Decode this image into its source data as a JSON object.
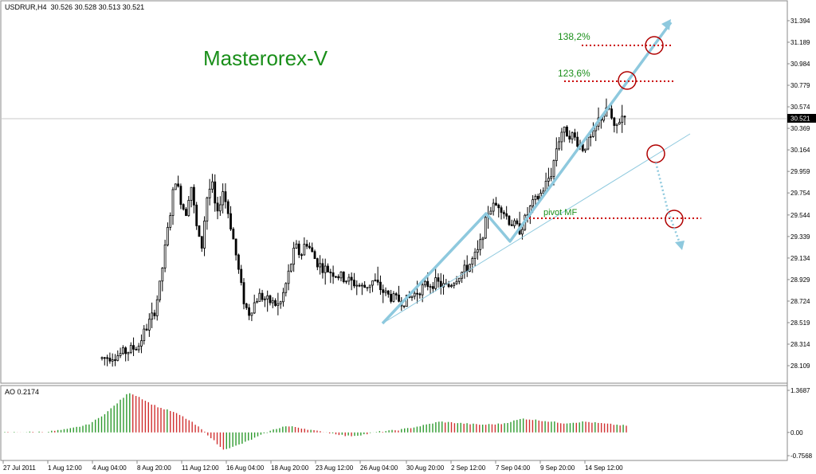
{
  "header": {
    "symbol": "USDRUR,H4",
    "ohlc": "30.526 30.528 30.513 30.521"
  },
  "brand": "Masterorex-V",
  "annotations": {
    "fib_138": "138,2%",
    "fib_123": "123,6%",
    "pivot": "pivot MF"
  },
  "colors": {
    "candle": "#000000",
    "arrow": "#8ec9de",
    "fibline": "#cc0000",
    "circle": "#b00000",
    "annotation": "#1a8f1a",
    "ao_up": "#2e9a2e",
    "ao_down": "#d03030",
    "grid": "#c8c8c8"
  },
  "chart_data": [
    {
      "type": "candlestick",
      "title": "USDRUR,H4",
      "current_price": 30.521,
      "ylim": [
        27.95,
        31.5
      ],
      "y_ticks": [
        "31.394",
        "31.189",
        "30.984",
        "30.779",
        "30.574",
        "30.369",
        "30.164",
        "29.959",
        "29.754",
        "29.544",
        "29.339",
        "29.134",
        "28.929",
        "28.724",
        "28.519",
        "28.314",
        "28.109"
      ],
      "x_ticks": [
        "27 Jul 2011",
        "1 Aug 12:00",
        "4 Aug 04:00",
        "8 Aug 20:00",
        "11 Aug 12:00",
        "16 Aug 04:00",
        "18 Aug 20:00",
        "23 Aug 12:00",
        "26 Aug 04:00",
        "30 Aug 20:00",
        "2 Sep 12:00",
        "7 Sep 04:00",
        "9 Sep 20:00",
        "14 Sep 12:00"
      ],
      "price_path": [
        [
          0,
          28.18
        ],
        [
          3,
          28.21
        ],
        [
          5,
          28.25
        ],
        [
          7,
          28.3
        ],
        [
          8,
          28.42
        ],
        [
          10,
          28.62
        ],
        [
          11,
          28.85
        ],
        [
          12,
          29.2
        ],
        [
          13,
          29.55
        ],
        [
          14,
          29.9
        ],
        [
          15,
          29.7
        ],
        [
          16,
          29.55
        ],
        [
          17,
          29.85
        ],
        [
          18,
          29.45
        ],
        [
          19,
          29.2
        ],
        [
          20,
          29.7
        ],
        [
          21,
          29.85
        ],
        [
          22,
          29.5
        ],
        [
          23,
          29.8
        ],
        [
          24,
          29.6
        ],
        [
          25,
          29.35
        ],
        [
          26,
          29.05
        ],
        [
          27,
          28.75
        ],
        [
          28,
          28.6
        ],
        [
          30,
          28.78
        ],
        [
          32,
          28.72
        ],
        [
          34,
          28.68
        ],
        [
          35,
          28.85
        ],
        [
          36,
          29.05
        ],
        [
          37,
          29.25
        ],
        [
          38,
          29.15
        ],
        [
          39,
          29.3
        ],
        [
          40,
          29.2
        ],
        [
          41,
          29.1
        ],
        [
          42,
          29.05
        ],
        [
          44,
          29.0
        ],
        [
          46,
          28.95
        ],
        [
          48,
          28.9
        ],
        [
          50,
          28.85
        ],
        [
          52,
          28.92
        ],
        [
          54,
          28.8
        ],
        [
          56,
          28.74
        ],
        [
          58,
          28.72
        ],
        [
          60,
          28.8
        ],
        [
          62,
          28.88
        ],
        [
          64,
          28.9
        ],
        [
          66,
          28.85
        ],
        [
          68,
          28.96
        ],
        [
          70,
          29.05
        ],
        [
          72,
          29.2
        ],
        [
          73,
          29.4
        ],
        [
          74,
          29.6
        ],
        [
          76,
          29.65
        ],
        [
          78,
          29.48
        ],
        [
          80,
          29.4
        ],
        [
          82,
          29.62
        ],
        [
          84,
          29.75
        ],
        [
          86,
          29.95
        ],
        [
          87,
          30.2
        ],
        [
          88,
          30.35
        ],
        [
          90,
          30.3
        ],
        [
          92,
          30.18
        ],
        [
          94,
          30.3
        ],
        [
          95,
          30.45
        ],
        [
          97,
          30.55
        ],
        [
          98,
          30.35
        ],
        [
          99,
          30.45
        ],
        [
          100,
          30.52
        ]
      ]
    },
    {
      "type": "bar",
      "title": "AO 0.2174",
      "current_value": 0.2174,
      "ylim": [
        -0.7568,
        1.3687
      ],
      "y_ticks": [
        "1.3687",
        "0.00",
        "-0.7568"
      ],
      "profile": [
        [
          0,
          0.0
        ],
        [
          4,
          0.02
        ],
        [
          6,
          0.1
        ],
        [
          8,
          0.25
        ],
        [
          9,
          0.45
        ],
        [
          10,
          0.7
        ],
        [
          11,
          1.0
        ],
        [
          12,
          1.3
        ],
        [
          13,
          1.15
        ],
        [
          14,
          0.95
        ],
        [
          15,
          0.8
        ],
        [
          16,
          0.7
        ],
        [
          17,
          0.55
        ],
        [
          18,
          0.35
        ],
        [
          19,
          0.1
        ],
        [
          20,
          -0.2
        ],
        [
          21,
          -0.55
        ],
        [
          22,
          -0.48
        ],
        [
          23,
          -0.35
        ],
        [
          24,
          -0.2
        ],
        [
          25,
          -0.05
        ],
        [
          26,
          0.1
        ],
        [
          27,
          0.2
        ],
        [
          28,
          0.18
        ],
        [
          29,
          0.12
        ],
        [
          30,
          0.05
        ],
        [
          31,
          0.0
        ],
        [
          32,
          -0.05
        ],
        [
          33,
          -0.12
        ],
        [
          34,
          -0.1
        ],
        [
          35,
          -0.05
        ],
        [
          36,
          0.02
        ],
        [
          38,
          0.08
        ],
        [
          40,
          0.2
        ],
        [
          42,
          0.35
        ],
        [
          44,
          0.3
        ],
        [
          46,
          0.25
        ],
        [
          48,
          0.28
        ],
        [
          50,
          0.45
        ],
        [
          52,
          0.38
        ],
        [
          54,
          0.3
        ],
        [
          56,
          0.35
        ],
        [
          58,
          0.28
        ],
        [
          60,
          0.22
        ]
      ]
    }
  ]
}
